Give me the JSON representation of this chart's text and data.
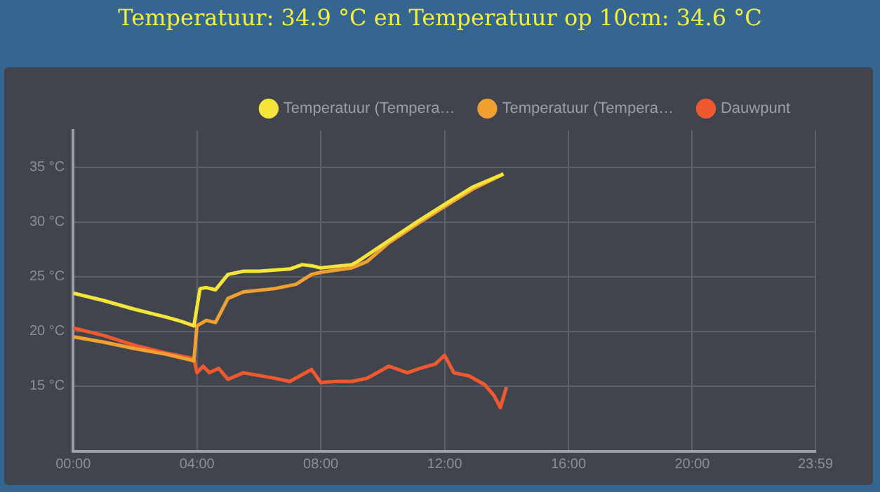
{
  "chart_data": {
    "type": "line",
    "title": "Temperatuur: 34.9 °C en Temperatuur op 10cm: 34.6 °C",
    "x": [
      0,
      1,
      2,
      3,
      3.5,
      3.9,
      4.1,
      4.3,
      4.6,
      5,
      5.5,
      6,
      7,
      7.4,
      7.7,
      8,
      9,
      9.2,
      10.2,
      11.1,
      12.1,
      12.9,
      13.9
    ],
    "series": [
      {
        "name": "Temperatuur (Tempera…",
        "color": "#f5e43a",
        "values": [
          23.5,
          22.8,
          22.0,
          21.3,
          20.9,
          20.5,
          23.9,
          24.0,
          23.8,
          25.2,
          25.5,
          25.5,
          25.7,
          26.1,
          26.0,
          25.8,
          26.1,
          26.4,
          28.3,
          30.0,
          31.8,
          33.2,
          34.4
        ]
      },
      {
        "name": "Temperatuur (Tempera…",
        "color": "#f0a030",
        "x": [
          0,
          1,
          2,
          3,
          3.9,
          4.0,
          4.3,
          4.6,
          5,
          5.5,
          6.5,
          7.2,
          7.7,
          8,
          9,
          9.5,
          10.2,
          11.1,
          12.1,
          12.9,
          13.9
        ],
        "values": [
          19.5,
          19.0,
          18.4,
          17.9,
          17.3,
          20.5,
          21.0,
          20.8,
          23.0,
          23.6,
          23.9,
          24.3,
          25.2,
          25.4,
          25.8,
          26.4,
          28.1,
          29.8,
          31.6,
          33.0,
          34.4
        ]
      },
      {
        "name": "Dauwpunt",
        "color": "#f0582f",
        "x": [
          0,
          1,
          2,
          3,
          3.9,
          4.0,
          4.2,
          4.4,
          4.7,
          5,
          5.5,
          6.5,
          7,
          7.7,
          8,
          8.5,
          9,
          9.5,
          10.2,
          10.8,
          11.2,
          11.7,
          12.0,
          12.3,
          12.8,
          13.3,
          13.6,
          13.8,
          14.0
        ],
        "values": [
          20.3,
          19.6,
          18.7,
          18.0,
          17.5,
          16.2,
          16.8,
          16.2,
          16.6,
          15.6,
          16.2,
          15.7,
          15.4,
          16.5,
          15.3,
          15.4,
          15.4,
          15.7,
          16.8,
          16.2,
          16.6,
          17.0,
          17.8,
          16.2,
          15.9,
          15.1,
          14.1,
          13.0,
          14.9
        ]
      }
    ],
    "xlim": [
      0,
      23.98
    ],
    "xticks": [
      {
        "value": 0,
        "label": "00:00"
      },
      {
        "value": 4,
        "label": "04:00"
      },
      {
        "value": 8,
        "label": "08:00"
      },
      {
        "value": 12,
        "label": "12:00"
      },
      {
        "value": 16,
        "label": "16:00"
      },
      {
        "value": 20,
        "label": "20:00"
      },
      {
        "value": 23.98,
        "label": "23:59"
      }
    ],
    "ylim": [
      9,
      38.4
    ],
    "yticks": [
      {
        "value": 15,
        "label": "15 °C"
      },
      {
        "value": 20,
        "label": "20 °C"
      },
      {
        "value": 25,
        "label": "25 °C"
      },
      {
        "value": 30,
        "label": "30 °C"
      },
      {
        "value": 35,
        "label": "35 °C"
      }
    ],
    "grid": true,
    "legend": "top",
    "marker": "none",
    "line_style": "solid"
  }
}
